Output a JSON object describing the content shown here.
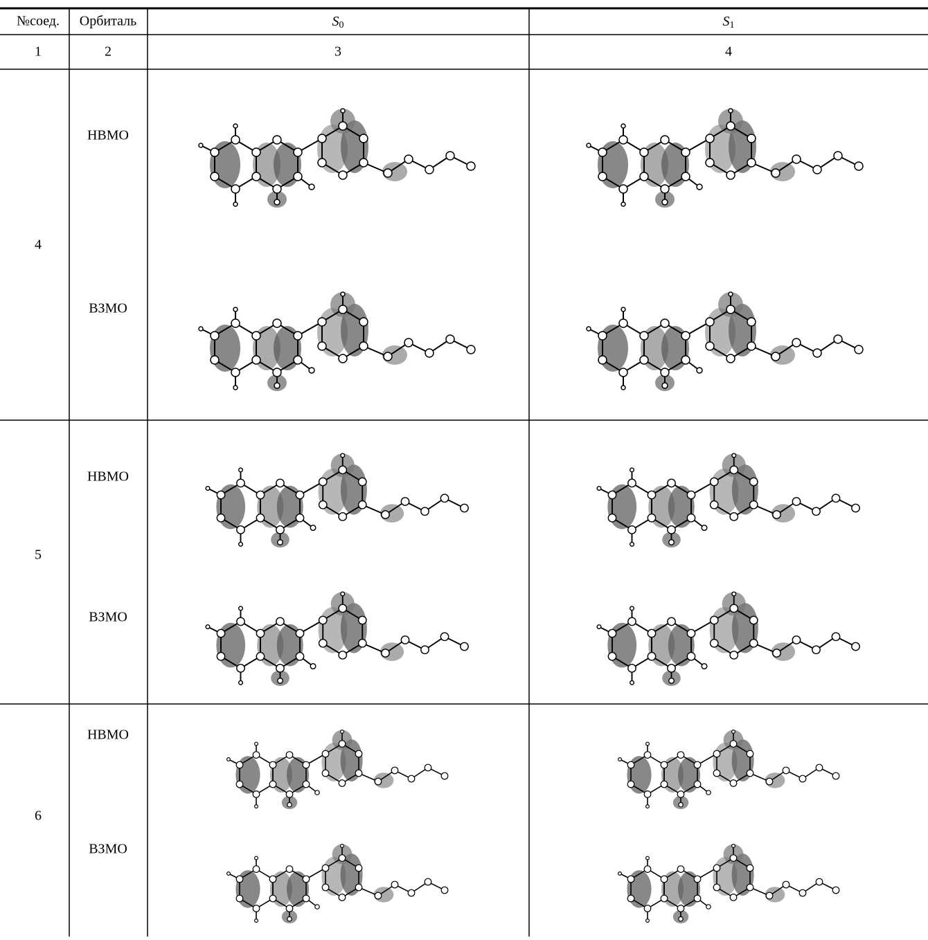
{
  "header": {
    "columns": [
      {
        "text": "№соед."
      },
      {
        "text": "Орбиталь"
      },
      {
        "symbol": "S",
        "sub": "0"
      },
      {
        "symbol": "S",
        "sub": "1"
      }
    ]
  },
  "numbering": [
    "1",
    "2",
    "3",
    "4"
  ],
  "rows": [
    {
      "compound": "4",
      "orbitals": [
        "НВМО",
        "ВЗМО"
      ]
    },
    {
      "compound": "5",
      "orbitals": [
        "НВМО",
        "ВЗМО"
      ]
    },
    {
      "compound": "6",
      "orbitals": [
        "НВМО",
        "ВЗМО"
      ]
    }
  ]
}
